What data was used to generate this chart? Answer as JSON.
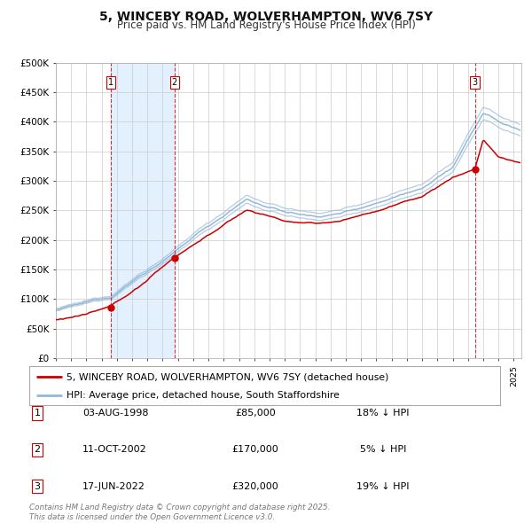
{
  "title": "5, WINCEBY ROAD, WOLVERHAMPTON, WV6 7SY",
  "subtitle": "Price paid vs. HM Land Registry's House Price Index (HPI)",
  "title_fontsize": 10,
  "subtitle_fontsize": 8.5,
  "background_color": "#ffffff",
  "grid_color": "#cccccc",
  "hpi_line_color": "#94b8d8",
  "price_line_color": "#cc0000",
  "shade_color": "#ddeeff",
  "ylim": [
    0,
    500000
  ],
  "yticks": [
    0,
    50000,
    100000,
    150000,
    200000,
    250000,
    300000,
    350000,
    400000,
    450000,
    500000
  ],
  "ytick_labels": [
    "£0",
    "£50K",
    "£100K",
    "£150K",
    "£200K",
    "£250K",
    "£300K",
    "£350K",
    "£400K",
    "£450K",
    "£500K"
  ],
  "xmin": 1995.0,
  "xmax": 2025.5,
  "purchases": [
    {
      "label": "1",
      "date": 1998.58,
      "price": 85000
    },
    {
      "label": "2",
      "date": 2002.77,
      "price": 170000
    },
    {
      "label": "3",
      "date": 2022.45,
      "price": 320000
    }
  ],
  "legend_price_label": "5, WINCEBY ROAD, WOLVERHAMPTON, WV6 7SY (detached house)",
  "legend_hpi_label": "HPI: Average price, detached house, South Staffordshire",
  "footer": "Contains HM Land Registry data © Crown copyright and database right 2025.\nThis data is licensed under the Open Government Licence v3.0.",
  "table_rows": [
    [
      "1",
      "03-AUG-1998",
      "£85,000",
      "18% ↓ HPI"
    ],
    [
      "2",
      "11-OCT-2002",
      "£170,000",
      "5% ↓ HPI"
    ],
    [
      "3",
      "17-JUN-2022",
      "£320,000",
      "19% ↓ HPI"
    ]
  ]
}
